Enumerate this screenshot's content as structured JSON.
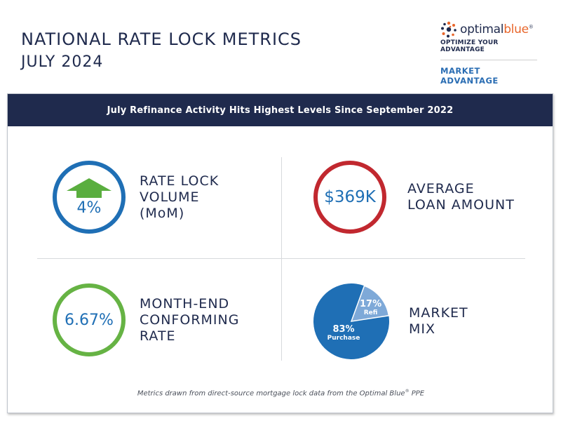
{
  "header": {
    "title": "NATIONAL RATE LOCK METRICS",
    "subtitle": "JULY 2024"
  },
  "brand": {
    "name_part1": "optimal",
    "name_part2": "blue",
    "mark": "®",
    "tagline": "OPTIMIZE YOUR ADVANTAGE",
    "market_advantage": "MARKET ADVANTAGE",
    "colors": {
      "navy": "#1f2a4d",
      "orange": "#e8662b",
      "blue": "#2a6db3"
    }
  },
  "banner": {
    "text": "July Refinance Activity Hits Highest Levels Since September 2022"
  },
  "metrics": {
    "rate_lock": {
      "value": "4%",
      "label_line1": "RATE LOCK",
      "label_line2": "VOLUME",
      "label_line3": "(MoM)",
      "icon": "up-arrow-icon",
      "ring_color": "#1f6fb5"
    },
    "loan_amount": {
      "value": "$369K",
      "label_line1": "AVERAGE",
      "label_line2": "LOAN AMOUNT",
      "ring_color": "#c1282f"
    },
    "conforming_rate": {
      "value": "6.67%",
      "label_line1": "MONTH-END",
      "label_line2": "CONFORMING",
      "label_line3": "RATE",
      "ring_color": "#66b344"
    },
    "market_mix": {
      "label_line1": "MARKET",
      "label_line2": "MIX",
      "purchase_pct": "83%",
      "purchase_label": "Purchase",
      "refi_pct": "17%",
      "refi_label": "Refi",
      "refi_fraction": 0.17,
      "purchase_color": "#1f6fb5",
      "refi_color": "#7ea9d8"
    }
  },
  "footnote": {
    "text": "Metrics drawn from direct-source mortgage lock data from the Optimal Blue",
    "mark": "®",
    "suffix": " PPE"
  }
}
